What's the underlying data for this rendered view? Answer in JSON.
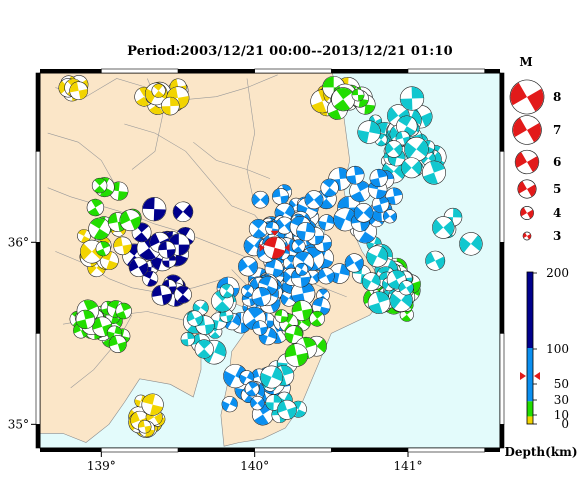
{
  "title": "Period:2003/12/21 00:00--2013/12/21 01:10",
  "map": {
    "lon_min": 138.6,
    "lon_max": 141.6,
    "lat_min": 34.87,
    "lat_max": 36.93,
    "lon_ticks": [
      {
        "value": 139,
        "label": "139°"
      },
      {
        "value": 140,
        "label": "140°"
      },
      {
        "value": 141,
        "label": "141°"
      }
    ],
    "lat_ticks": [
      {
        "value": 35,
        "label": "35°"
      },
      {
        "value": 36,
        "label": "36°"
      }
    ],
    "land_color": "#fbe6c8",
    "sea_color": "#e3fbfb",
    "main_event": {
      "lon": 140.13,
      "lat": 35.97,
      "color": "#e21a1a"
    }
  },
  "magnitude_legend": {
    "title": "M",
    "items": [
      {
        "label": "8",
        "m": 8
      },
      {
        "label": "7",
        "m": 7
      },
      {
        "label": "6",
        "m": 6
      },
      {
        "label": "5",
        "m": 5
      },
      {
        "label": "4",
        "m": 4
      },
      {
        "label": "3",
        "m": 3
      }
    ],
    "color": "#e21a1a"
  },
  "depth_scale": {
    "title": "Depth(km)",
    "ticks": [
      {
        "value": 200,
        "label": "200"
      },
      {
        "value": 100,
        "label": "100"
      },
      {
        "value": 50,
        "label": "50"
      },
      {
        "value": 30,
        "label": "30"
      },
      {
        "value": 10,
        "label": "10"
      },
      {
        "value": 0,
        "label": "0"
      }
    ],
    "bands": [
      {
        "from": 0,
        "to": 10,
        "color": "#f2d400"
      },
      {
        "from": 10,
        "to": 30,
        "color": "#22dd00"
      },
      {
        "from": 30,
        "to": 100,
        "color": "#0a8ff0"
      },
      {
        "from": 100,
        "to": 200,
        "color": "#00008c"
      }
    ],
    "marker_depth": 45,
    "marker_color": "#e21a1a"
  },
  "clusters": [
    {
      "lon": 140.25,
      "lat": 35.95,
      "slon": 0.33,
      "slat": 0.45,
      "n": 95,
      "color": "#0a8ff0"
    },
    {
      "lon": 140.05,
      "lat": 35.7,
      "slon": 0.25,
      "slat": 0.3,
      "n": 30,
      "color": "#0a8ff0"
    },
    {
      "lon": 141.0,
      "lat": 36.55,
      "slon": 0.3,
      "slat": 0.3,
      "n": 45,
      "color": "#11c7cf"
    },
    {
      "lon": 140.9,
      "lat": 35.75,
      "slon": 0.18,
      "slat": 0.2,
      "n": 45,
      "color": "#22dd00"
    },
    {
      "lon": 140.85,
      "lat": 35.8,
      "slon": 0.25,
      "slat": 0.25,
      "n": 25,
      "color": "#11c7cf"
    },
    {
      "lon": 139.0,
      "lat": 35.55,
      "slon": 0.22,
      "slat": 0.15,
      "n": 30,
      "color": "#22dd00"
    },
    {
      "lon": 139.3,
      "lat": 35.0,
      "slon": 0.15,
      "slat": 0.2,
      "n": 12,
      "color": "#f2d400"
    },
    {
      "lon": 139.4,
      "lat": 36.8,
      "slon": 0.2,
      "slat": 0.1,
      "n": 14,
      "color": "#f2d400"
    },
    {
      "lon": 138.8,
      "lat": 36.85,
      "slon": 0.1,
      "slat": 0.06,
      "n": 6,
      "color": "#f2d400"
    },
    {
      "lon": 140.5,
      "lat": 36.8,
      "slon": 0.15,
      "slat": 0.08,
      "n": 14,
      "color": "#f2d400"
    },
    {
      "lon": 140.6,
      "lat": 36.78,
      "slon": 0.18,
      "slat": 0.1,
      "n": 14,
      "color": "#22dd00"
    },
    {
      "lon": 139.4,
      "lat": 35.9,
      "slon": 0.3,
      "slat": 0.35,
      "n": 26,
      "color": "#00008c"
    },
    {
      "lon": 139.0,
      "lat": 35.95,
      "slon": 0.2,
      "slat": 0.3,
      "n": 12,
      "color": "#f2d400"
    },
    {
      "lon": 139.1,
      "lat": 36.1,
      "slon": 0.25,
      "slat": 0.3,
      "n": 10,
      "color": "#22dd00"
    },
    {
      "lon": 140.0,
      "lat": 35.2,
      "slon": 0.25,
      "slat": 0.2,
      "n": 20,
      "color": "#0a8ff0"
    },
    {
      "lon": 140.15,
      "lat": 35.2,
      "slon": 0.2,
      "slat": 0.2,
      "n": 10,
      "color": "#11c7cf"
    },
    {
      "lon": 140.3,
      "lat": 35.5,
      "slon": 0.2,
      "slat": 0.2,
      "n": 12,
      "color": "#22dd00"
    },
    {
      "lon": 139.7,
      "lat": 35.55,
      "slon": 0.25,
      "slat": 0.25,
      "n": 14,
      "color": "#11c7cf"
    },
    {
      "lon": 140.7,
      "lat": 36.2,
      "slon": 0.35,
      "slat": 0.35,
      "n": 20,
      "color": "#0a8ff0"
    },
    {
      "lon": 141.3,
      "lat": 36.0,
      "slon": 0.2,
      "slat": 0.3,
      "n": 5,
      "color": "#11c7cf"
    }
  ]
}
